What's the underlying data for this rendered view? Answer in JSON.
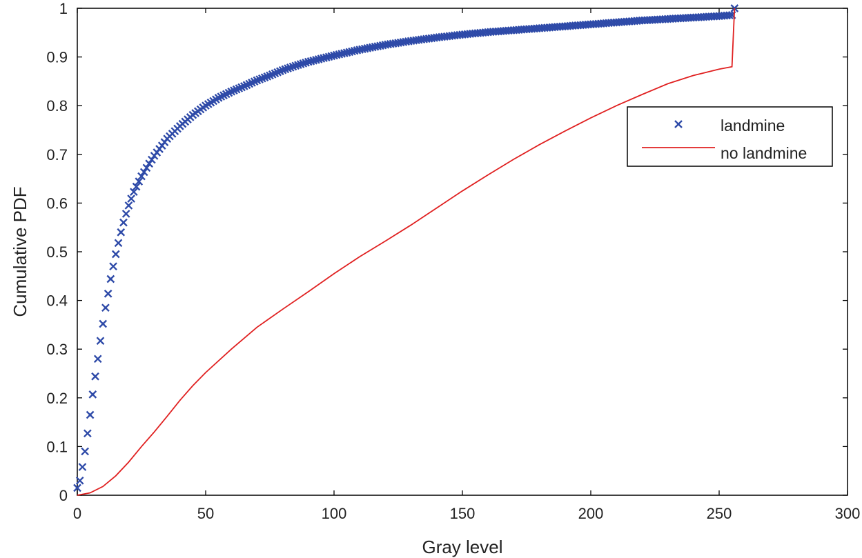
{
  "chart_data": {
    "type": "line",
    "xlabel": "Gray level",
    "ylabel": "Cumulative PDF",
    "xlim": [
      0,
      300
    ],
    "ylim": [
      0,
      1
    ],
    "xticks": [
      "0",
      "50",
      "100",
      "150",
      "200",
      "250",
      "300"
    ],
    "yticks": [
      "0",
      "0.1",
      "0.2",
      "0.3",
      "0.4",
      "0.5",
      "0.6",
      "0.7",
      "0.8",
      "0.9",
      "1"
    ],
    "grid": false,
    "legend": {
      "position": "top-right",
      "entries": [
        "landmine",
        "no landmine"
      ]
    },
    "series": [
      {
        "name": "landmine",
        "marker": "x",
        "color": "#2e4aa8",
        "x": [
          0,
          1,
          2,
          3,
          4,
          5,
          6,
          7,
          8,
          9,
          10,
          11,
          12,
          13,
          14,
          15,
          16,
          17,
          18,
          19,
          20,
          22,
          25,
          28,
          30,
          35,
          40,
          45,
          50,
          55,
          60,
          65,
          70,
          75,
          80,
          85,
          90,
          100,
          110,
          120,
          130,
          140,
          150,
          160,
          170,
          180,
          190,
          200,
          210,
          220,
          230,
          240,
          250,
          255,
          256
        ],
        "y": [
          0.015,
          0.03,
          0.058,
          0.09,
          0.127,
          0.165,
          0.207,
          0.244,
          0.28,
          0.317,
          0.352,
          0.385,
          0.414,
          0.444,
          0.47,
          0.495,
          0.518,
          0.54,
          0.56,
          0.578,
          0.595,
          0.623,
          0.655,
          0.681,
          0.697,
          0.732,
          0.758,
          0.781,
          0.8,
          0.816,
          0.829,
          0.84,
          0.852,
          0.862,
          0.873,
          0.882,
          0.89,
          0.903,
          0.915,
          0.925,
          0.933,
          0.94,
          0.946,
          0.951,
          0.955,
          0.959,
          0.963,
          0.967,
          0.971,
          0.975,
          0.978,
          0.981,
          0.984,
          0.986,
          1.0
        ]
      },
      {
        "name": "no landmine",
        "marker": "line",
        "color": "#e02020",
        "x": [
          0,
          5,
          10,
          15,
          20,
          25,
          30,
          35,
          40,
          45,
          50,
          60,
          70,
          80,
          90,
          100,
          110,
          120,
          130,
          140,
          150,
          160,
          170,
          180,
          190,
          200,
          210,
          220,
          230,
          240,
          250,
          255,
          256
        ],
        "y": [
          0.0,
          0.005,
          0.018,
          0.04,
          0.068,
          0.1,
          0.13,
          0.162,
          0.195,
          0.225,
          0.252,
          0.3,
          0.345,
          0.382,
          0.418,
          0.455,
          0.49,
          0.522,
          0.555,
          0.59,
          0.625,
          0.658,
          0.69,
          0.72,
          0.748,
          0.775,
          0.8,
          0.823,
          0.845,
          0.862,
          0.875,
          0.88,
          1.0
        ]
      }
    ]
  }
}
